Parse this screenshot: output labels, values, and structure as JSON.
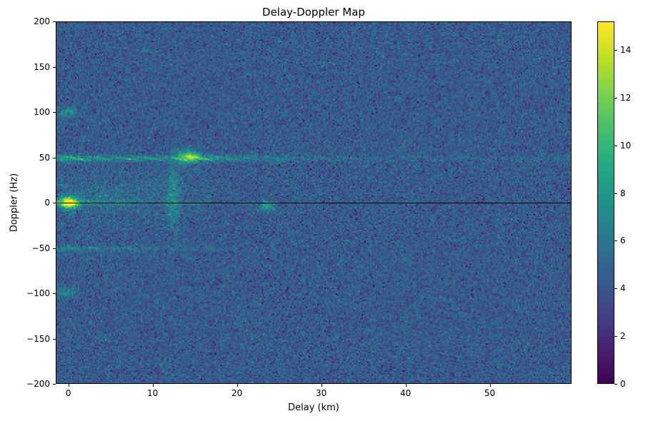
{
  "chart_data": {
    "type": "heatmap",
    "title": "Delay-Doppler Map",
    "xlabel": "Delay (km)",
    "ylabel": "Doppler (Hz)",
    "x_range": [
      -1.5,
      59.7
    ],
    "y_range": [
      -200,
      200
    ],
    "x_ticks": [
      0,
      10,
      20,
      30,
      40,
      50
    ],
    "y_ticks": [
      200,
      150,
      100,
      50,
      0,
      -50,
      -100,
      -150,
      -200
    ],
    "colormap": "viridis",
    "vmin": 0,
    "vmax": 15.2,
    "colorbar_ticks": [
      0,
      2,
      4,
      6,
      8,
      10,
      12,
      14
    ],
    "legend_position": "right-colorbar",
    "grid": false,
    "noise": {
      "mean": 4.3,
      "std": 1.0,
      "seed": 42
    },
    "zero_line": {
      "doppler": 0,
      "color": "#000000"
    },
    "features": [
      {
        "name": "direct-path-peak",
        "type": "gauss",
        "delay": 0,
        "doppler": 0,
        "sigma_delay": 0.7,
        "sigma_doppler": 4.5,
        "amp": 11
      },
      {
        "name": "zero-doppler-clutter",
        "type": "band",
        "center": 0,
        "sigma": 2.2,
        "amp": 4.2,
        "from": -1.5,
        "to": 17,
        "fade_from": 3,
        "fade_scale": 9,
        "fade_floor": 0.05,
        "streak_k": [
          3.1,
          0.6
        ]
      },
      {
        "name": "plus-50hz-band",
        "type": "band",
        "center": 49,
        "sigma": 2.4,
        "amp": 6.0,
        "from": -1.5,
        "to": 59.7,
        "fade_from": 15,
        "fade_scale": 16,
        "fade_floor": 0.22,
        "streak_k": [
          2.1,
          1.1
        ]
      },
      {
        "name": "minus-50hz-band",
        "type": "band",
        "center": -51,
        "sigma": 2.1,
        "amp": 3.4,
        "from": -1.5,
        "to": 23,
        "fade_from": 6,
        "fade_scale": 12,
        "fade_floor": 0.0,
        "streak_k": [
          2.7,
          0.8
        ]
      },
      {
        "name": "plus-50hz-hook",
        "type": "gauss",
        "delay": 14.3,
        "doppler": 51,
        "sigma_delay": 1.0,
        "sigma_doppler": 5,
        "amp": 6.5
      },
      {
        "name": "range-12km-streak",
        "type": "gauss",
        "delay": 12.4,
        "doppler": 6,
        "sigma_delay": 0.55,
        "sigma_doppler": 26,
        "amp": 2.6
      },
      {
        "name": "clutter-mist",
        "type": "gauss",
        "delay": 5,
        "doppler": 8,
        "sigma_delay": 6,
        "sigma_doppler": 16,
        "amp": 1.1
      },
      {
        "name": "spot-plus-100hz",
        "type": "gauss",
        "delay": -0.3,
        "doppler": 100,
        "sigma_delay": 0.9,
        "sigma_doppler": 3.5,
        "amp": 3.0
      },
      {
        "name": "spot-minus-100hz",
        "type": "gauss",
        "delay": -0.3,
        "doppler": -100,
        "sigma_delay": 0.9,
        "sigma_doppler": 3.5,
        "amp": 2.6
      },
      {
        "name": "target-23km",
        "type": "gauss",
        "delay": 23.6,
        "doppler": -4,
        "sigma_delay": 0.6,
        "sigma_doppler": 3.5,
        "amp": 4.2
      }
    ]
  }
}
